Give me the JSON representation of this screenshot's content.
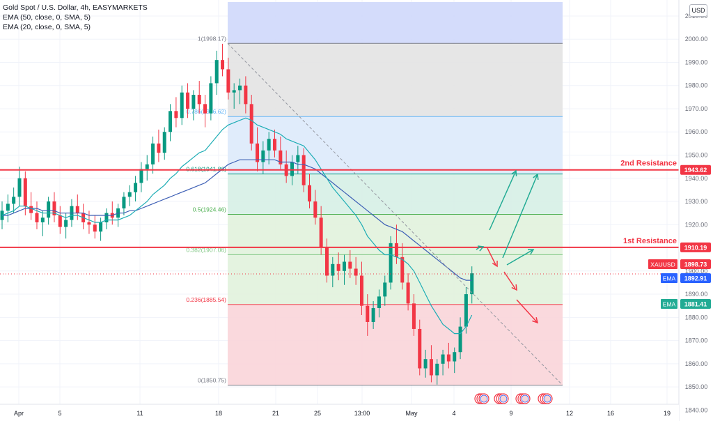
{
  "legend": {
    "title": "Gold Spot / U.S. Dollar, 4h, EASYMARKETS",
    "ema50": "EMA (50, close, 0, SMA, 5)",
    "ema20": "EMA (20, close, 0, SMA, 5)"
  },
  "currency_label": "USD",
  "chart_data": {
    "type": "candlestick",
    "title": "Gold Spot / U.S. Dollar, 4h, EASYMARKETS",
    "y_axis": {
      "unit": "USD",
      "ylim": [
        1838,
        2016
      ],
      "ticks": [
        2010,
        2000,
        1990,
        1980,
        1970,
        1960,
        1950,
        1940,
        1930,
        1920,
        1910,
        1900,
        1890,
        1880,
        1870,
        1860,
        1850,
        1840
      ],
      "tick_labels": [
        "2010.00",
        "2000.00",
        "1990.00",
        "1980.00",
        "1970.00",
        "1960.00",
        "1950.00",
        "1940.00",
        "1930.00",
        "1920.00",
        "1910.00",
        "1900.00",
        "1890.00",
        "1880.00",
        "1870.00",
        "1860.00",
        "1850.00",
        "1840.00"
      ]
    },
    "x_axis": {
      "tick_labels": [
        "Apr",
        "5",
        "11",
        "18",
        "21",
        "25",
        "13:00",
        "May",
        "4",
        "9",
        "12",
        "16",
        "19"
      ]
    },
    "ohlc": [
      [
        1922,
        1930,
        1918,
        1926
      ],
      [
        1926,
        1933,
        1921,
        1929
      ],
      [
        1929,
        1936,
        1925,
        1932
      ],
      [
        1932,
        1945,
        1928,
        1940
      ],
      [
        1940,
        1943,
        1924,
        1928
      ],
      [
        1928,
        1934,
        1922,
        1925
      ],
      [
        1925,
        1930,
        1918,
        1921
      ],
      [
        1921,
        1926,
        1915,
        1923
      ],
      [
        1923,
        1932,
        1920,
        1930
      ],
      [
        1930,
        1934,
        1921,
        1924
      ],
      [
        1924,
        1928,
        1916,
        1919
      ],
      [
        1919,
        1925,
        1914,
        1922
      ],
      [
        1922,
        1931,
        1919,
        1928
      ],
      [
        1928,
        1933,
        1922,
        1925
      ],
      [
        1925,
        1929,
        1918,
        1921
      ],
      [
        1921,
        1926,
        1916,
        1920
      ],
      [
        1920,
        1924,
        1914,
        1917
      ],
      [
        1917,
        1923,
        1913,
        1921
      ],
      [
        1921,
        1927,
        1918,
        1925
      ],
      [
        1925,
        1930,
        1920,
        1923
      ],
      [
        1923,
        1929,
        1919,
        1927
      ],
      [
        1927,
        1934,
        1924,
        1932
      ],
      [
        1932,
        1937,
        1928,
        1934
      ],
      [
        1934,
        1941,
        1930,
        1938
      ],
      [
        1938,
        1947,
        1934,
        1944
      ],
      [
        1944,
        1950,
        1939,
        1946
      ],
      [
        1946,
        1958,
        1942,
        1955
      ],
      [
        1955,
        1961,
        1947,
        1951
      ],
      [
        1951,
        1962,
        1948,
        1960
      ],
      [
        1960,
        1972,
        1956,
        1969
      ],
      [
        1969,
        1975,
        1962,
        1966
      ],
      [
        1966,
        1980,
        1963,
        1977
      ],
      [
        1977,
        1981,
        1966,
        1970
      ],
      [
        1970,
        1978,
        1965,
        1976
      ],
      [
        1976,
        1982,
        1968,
        1972
      ],
      [
        1972,
        1976,
        1962,
        1968
      ],
      [
        1968,
        1984,
        1965,
        1981
      ],
      [
        1981,
        1995,
        1976,
        1991
      ],
      [
        1991,
        1998,
        1984,
        1987
      ],
      [
        1987,
        1992,
        1974,
        1977
      ],
      [
        1977,
        1981,
        1970,
        1978
      ],
      [
        1978,
        1983,
        1972,
        1980
      ],
      [
        1980,
        1984,
        1968,
        1972
      ],
      [
        1972,
        1976,
        1952,
        1955
      ],
      [
        1955,
        1962,
        1943,
        1947
      ],
      [
        1947,
        1956,
        1942,
        1952
      ],
      [
        1952,
        1960,
        1946,
        1957
      ],
      [
        1957,
        1961,
        1949,
        1952
      ],
      [
        1952,
        1958,
        1944,
        1946
      ],
      [
        1946,
        1952,
        1938,
        1941
      ],
      [
        1941,
        1950,
        1937,
        1947
      ],
      [
        1947,
        1954,
        1942,
        1950
      ],
      [
        1950,
        1953,
        1934,
        1937
      ],
      [
        1937,
        1942,
        1927,
        1930
      ],
      [
        1930,
        1935,
        1920,
        1923
      ],
      [
        1923,
        1928,
        1907,
        1910
      ],
      [
        1910,
        1914,
        1895,
        1898
      ],
      [
        1898,
        1906,
        1893,
        1903
      ],
      [
        1903,
        1908,
        1896,
        1900
      ],
      [
        1900,
        1907,
        1894,
        1904
      ],
      [
        1904,
        1909,
        1897,
        1901
      ],
      [
        1901,
        1906,
        1894,
        1898
      ],
      [
        1898,
        1904,
        1881,
        1885
      ],
      [
        1885,
        1890,
        1872,
        1878
      ],
      [
        1878,
        1887,
        1875,
        1884
      ],
      [
        1884,
        1892,
        1880,
        1889
      ],
      [
        1889,
        1898,
        1885,
        1895
      ],
      [
        1895,
        1915,
        1892,
        1912
      ],
      [
        1912,
        1920,
        1903,
        1906
      ],
      [
        1906,
        1912,
        1892,
        1895
      ],
      [
        1895,
        1899,
        1883,
        1886
      ],
      [
        1886,
        1890,
        1872,
        1875
      ],
      [
        1875,
        1879,
        1855,
        1858
      ],
      [
        1858,
        1866,
        1854,
        1862
      ],
      [
        1862,
        1868,
        1852,
        1855
      ],
      [
        1855,
        1862,
        1851,
        1860
      ],
      [
        1860,
        1866,
        1855,
        1864
      ],
      [
        1864,
        1869,
        1858,
        1861
      ],
      [
        1861,
        1867,
        1856,
        1865
      ],
      [
        1865,
        1880,
        1862,
        1876
      ],
      [
        1876,
        1893,
        1873,
        1890
      ],
      [
        1890,
        1902,
        1886,
        1899
      ]
    ],
    "ema": [
      {
        "name": "EMA (50, close, 0, SMA, 5)",
        "color": "#3d5fb5",
        "values": [
          1924,
          1924,
          1925,
          1926,
          1927,
          1927,
          1927,
          1926,
          1926,
          1926,
          1925,
          1925,
          1925,
          1925,
          1925,
          1924,
          1924,
          1924,
          1924,
          1924,
          1925,
          1925,
          1926,
          1926,
          1927,
          1928,
          1929,
          1930,
          1931,
          1932,
          1933,
          1934,
          1935,
          1936,
          1937,
          1938,
          1940,
          1942,
          1944,
          1946,
          1947,
          1948,
          1948,
          1948,
          1948,
          1948,
          1948,
          1948,
          1947,
          1947,
          1947,
          1946,
          1946,
          1945,
          1944,
          1942,
          1940,
          1938,
          1936,
          1934,
          1932,
          1930,
          1928,
          1926,
          1924,
          1922,
          1920,
          1919,
          1918,
          1917,
          1915,
          1913,
          1911,
          1909,
          1907,
          1905,
          1903,
          1901,
          1899,
          1897,
          1896,
          1896
        ]
      },
      {
        "name": "EMA (20, close, 0, SMA, 5)",
        "color": "#1dadb5",
        "values": [
          1924,
          1925,
          1926,
          1928,
          1928,
          1927,
          1926,
          1925,
          1925,
          1925,
          1924,
          1923,
          1924,
          1924,
          1923,
          1922,
          1921,
          1921,
          1922,
          1922,
          1922,
          1923,
          1924,
          1926,
          1928,
          1930,
          1933,
          1935,
          1937,
          1940,
          1942,
          1945,
          1947,
          1949,
          1951,
          1952,
          1955,
          1958,
          1961,
          1963,
          1964,
          1965,
          1966,
          1965,
          1963,
          1962,
          1961,
          1960,
          1959,
          1957,
          1956,
          1955,
          1954,
          1951,
          1948,
          1944,
          1940,
          1936,
          1933,
          1930,
          1927,
          1924,
          1920,
          1915,
          1912,
          1909,
          1907,
          1907,
          1906,
          1905,
          1903,
          1900,
          1895,
          1890,
          1885,
          1881,
          1877,
          1875,
          1873,
          1873,
          1876,
          1881
        ]
      }
    ],
    "fibonacci": {
      "levels": [
        {
          "ratio": "1",
          "price": 1998.17,
          "label": "1(1998.17)",
          "color": "#787b86"
        },
        {
          "ratio": "0.786",
          "price": 1966.62,
          "label": "0.786(1966.62)",
          "color": "#64b5f6"
        },
        {
          "ratio": "0.618",
          "price": 1941.86,
          "label": "0.618(1941.86)",
          "color": "#089981"
        },
        {
          "ratio": "0.5",
          "price": 1924.46,
          "label": "0.5(1924.46)",
          "color": "#4caf50"
        },
        {
          "ratio": "0.382",
          "price": 1907.06,
          "label": "0.382(1907.06)",
          "color": "#81c784"
        },
        {
          "ratio": "0.236",
          "price": 1885.54,
          "label": "0.236(1885.54)",
          "color": "#f23645"
        },
        {
          "ratio": "0",
          "price": 1850.75,
          "label": "0(1850.75)",
          "color": "#787b86"
        }
      ],
      "zones": [
        {
          "from": 1998.17,
          "to": 2016,
          "color": "#cfd8fb"
        },
        {
          "from": 1966.62,
          "to": 1998.17,
          "color": "#e3e3e3"
        },
        {
          "from": 1941.86,
          "to": 1966.62,
          "color": "#ddeafb"
        },
        {
          "from": 1924.46,
          "to": 1941.86,
          "color": "#d6efe6"
        },
        {
          "from": 1885.54,
          "to": 1924.46,
          "color": "#e1f2dd"
        },
        {
          "from": 1850.75,
          "to": 1885.54,
          "color": "#f9d5d9"
        }
      ]
    },
    "resistance": [
      {
        "label": "2nd Resistance",
        "price": 1943.62,
        "price_label": "1943.62",
        "color": "#f23645"
      },
      {
        "label": "1st Resistance",
        "price": 1910.19,
        "price_label": "1910.19",
        "color": "#f23645"
      }
    ],
    "price_tags": [
      {
        "name": "XAUUSD",
        "price": 1898.73,
        "price_label": "1898.73",
        "color": "#f23645"
      },
      {
        "name": "EMA",
        "price": 1892.91,
        "price_label": "1892.91",
        "color": "#2962ff"
      },
      {
        "name": "EMA",
        "price": 1881.41,
        "price_label": "1881.41",
        "color": "#22ab94"
      }
    ],
    "annotation_arrows": [
      {
        "color": "#22ab94"
      },
      {
        "color": "#22ab94"
      },
      {
        "color": "#22ab94"
      },
      {
        "color": "#22ab94"
      },
      {
        "color": "#f23645"
      },
      {
        "color": "#f23645"
      },
      {
        "color": "#f23645"
      }
    ],
    "event_icons": 4
  }
}
